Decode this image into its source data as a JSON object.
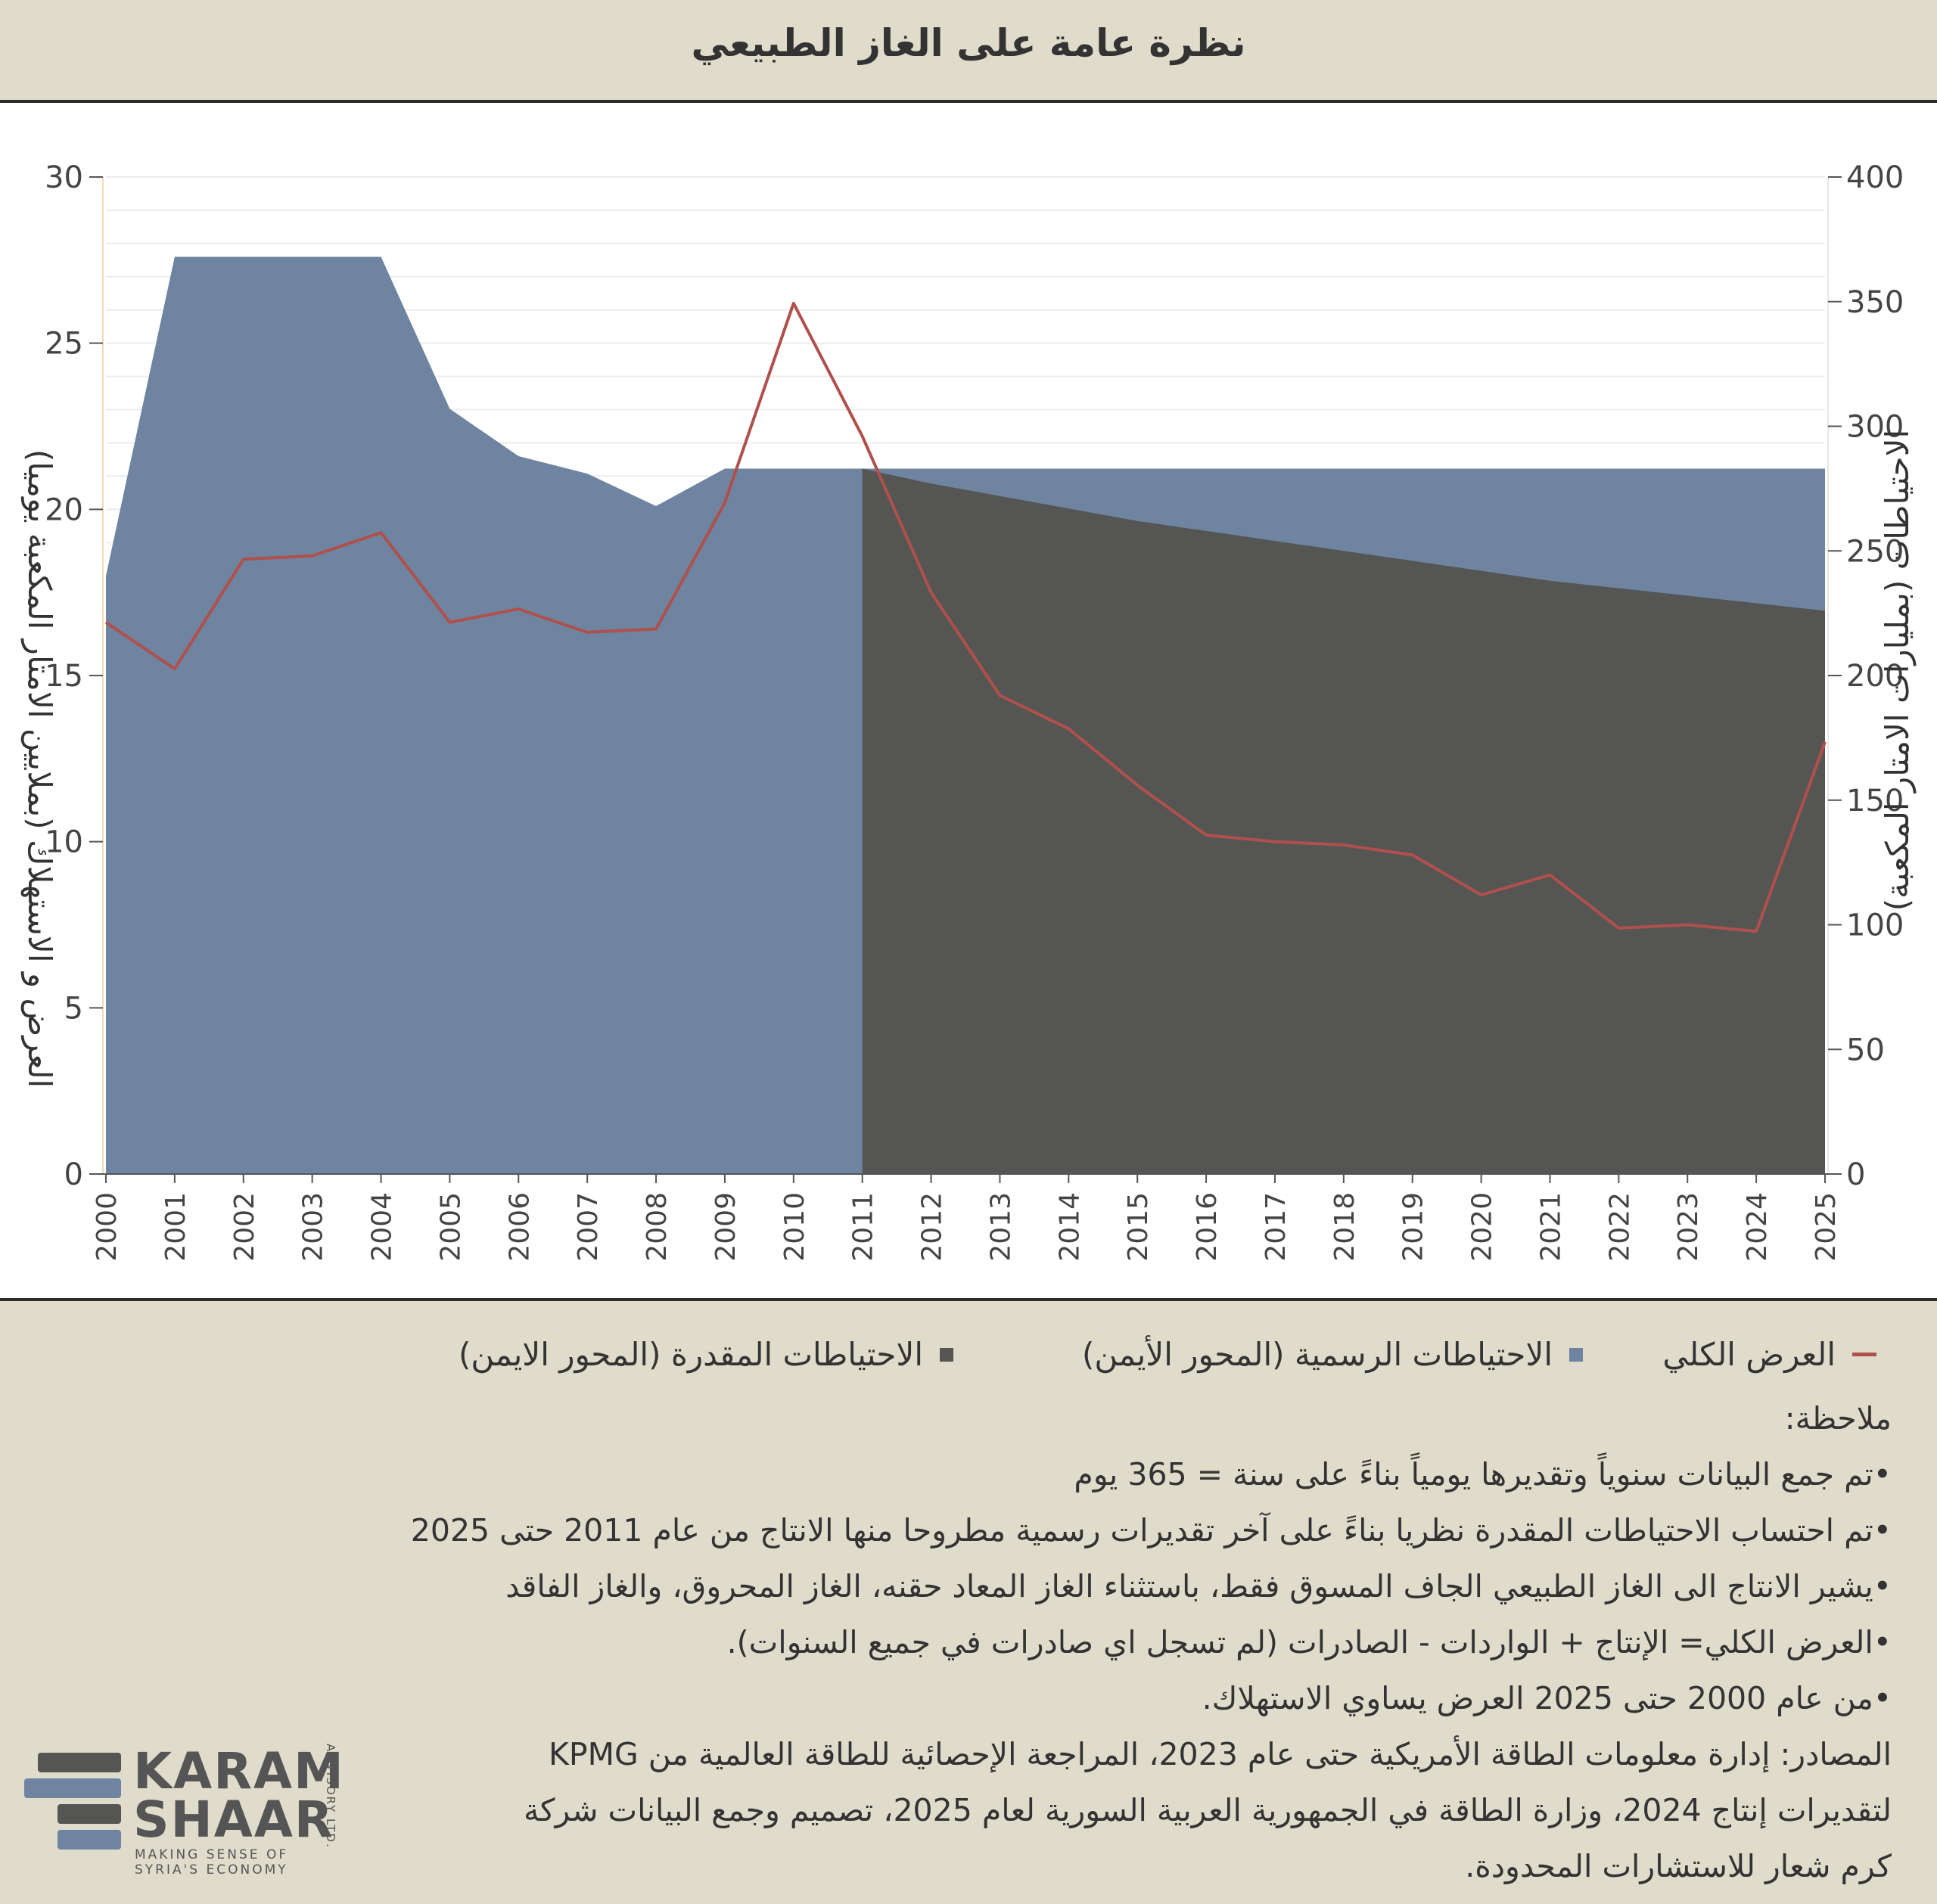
{
  "header": {
    "title": "نظرة عامة على الغاز الطبيعي"
  },
  "chart_data": {
    "type": "area",
    "x": [
      2000,
      2001,
      2002,
      2003,
      2004,
      2005,
      2006,
      2007,
      2008,
      2009,
      2010,
      2011,
      2012,
      2013,
      2014,
      2015,
      2016,
      2017,
      2018,
      2019,
      2020,
      2021,
      2022,
      2023,
      2024,
      2025
    ],
    "left_axis": {
      "label": "العرض و الاستهلاك (بملايين الامتار المكعبة يوميا)",
      "ylim": [
        0,
        30
      ],
      "ticks": [
        0,
        5,
        10,
        15,
        20,
        25,
        30
      ]
    },
    "right_axis": {
      "label": "الاحتياطات (بمليارات الامتار المكعبة)",
      "ylim": [
        0,
        400
      ],
      "ticks": [
        0,
        50,
        100,
        150,
        200,
        250,
        300,
        350,
        400
      ]
    },
    "series": [
      {
        "name": "الاحتياطات الرسمية (المحور الأيمن)",
        "type": "area",
        "axis": "right",
        "color": "#6e84a0",
        "x": [
          2000,
          2001,
          2002,
          2003,
          2004,
          2005,
          2006,
          2007,
          2008,
          2009,
          2010,
          2011,
          2012,
          2013,
          2014,
          2015,
          2016,
          2017,
          2018,
          2019,
          2020,
          2021,
          2022,
          2023,
          2024,
          2025
        ],
        "values": [
          240,
          368,
          368,
          368,
          368,
          307,
          288,
          281,
          268,
          283,
          283,
          283,
          283,
          283,
          283,
          283,
          283,
          283,
          283,
          283,
          283,
          283,
          283,
          283,
          283,
          283
        ]
      },
      {
        "name": "الاحتياطات المقدرة (المحور الايمن)",
        "type": "area",
        "axis": "right",
        "color": "#555553",
        "x": [
          2011,
          2012,
          2013,
          2014,
          2015,
          2016,
          2017,
          2018,
          2019,
          2020,
          2021,
          2022,
          2023,
          2024,
          2025
        ],
        "values": [
          283,
          277,
          272,
          267,
          262,
          258,
          254,
          250,
          246,
          242,
          238,
          235,
          232,
          229,
          226
        ]
      },
      {
        "name": "العرض الكلي",
        "type": "line",
        "axis": "left",
        "color": "#b0504c",
        "x": [
          2000,
          2001,
          2002,
          2003,
          2004,
          2005,
          2006,
          2007,
          2008,
          2009,
          2010,
          2011,
          2012,
          2013,
          2014,
          2015,
          2016,
          2017,
          2018,
          2019,
          2020,
          2021,
          2022,
          2023,
          2024,
          2025
        ],
        "values": [
          16.6,
          15.2,
          18.5,
          18.6,
          19.3,
          16.6,
          17.0,
          16.3,
          16.4,
          20.2,
          26.2,
          22.2,
          17.5,
          14.4,
          13.4,
          11.7,
          10.2,
          10.0,
          9.9,
          9.6,
          8.4,
          9.0,
          7.4,
          7.5,
          7.3,
          13.0
        ]
      }
    ],
    "grid": true,
    "legend_position": "bottom"
  },
  "legend": [
    {
      "label": "العرض الكلي",
      "color": "#b0504c",
      "marker": "line"
    },
    {
      "label": "الاحتياطات الرسمية (المحور الأيمن)",
      "color": "#6e84a0",
      "marker": "square"
    },
    {
      "label": "الاحتياطات المقدرة (المحور الايمن)",
      "color": "#555553",
      "marker": "square"
    }
  ],
  "notes": {
    "heading": "ملاحظة:",
    "items": [
      "•تم جمع البيانات سنوياً وتقديرها يومياً بناءً على سنة = 365 يوم",
      "•تم احتساب الاحتياطات المقدرة نظريا بناءً على آخر تقديرات رسمية مطروحا منها الانتاج من عام 2011 حتى 2025",
      "•يشير الانتاج الى الغاز الطبيعي الجاف المسوق فقط، باستثناء الغاز المعاد حقنه، الغاز المحروق، والغاز الفاقد",
      "•العرض الكلي= الإنتاج + الواردات - الصادرات (لم تسجل اي صادرات في جميع السنوات).",
      "•من عام 2000 حتى 2025 العرض يساوي الاستهلاك."
    ],
    "sources": [
      "المصادر: إدارة معلومات الطاقة الأمريكية حتى عام 2023، المراجعة الإحصائية للطاقة العالمية من KPMG",
      "لتقديرات إنتاج 2024، وزارة الطاقة في الجمهورية العربية السورية لعام 2025، تصميم وجمع البيانات شركة",
      "كرم شعار للاستشارات المحدودة."
    ]
  },
  "logo": {
    "line1": "KARAM",
    "line2": "SHAAR",
    "tagline1": "MAKING SENSE OF",
    "tagline2": "SYRIA'S ECONOMY",
    "vertical": "ADVISORY LTD.",
    "colors": {
      "dark": "#555553",
      "blue": "#6e84a0"
    }
  }
}
